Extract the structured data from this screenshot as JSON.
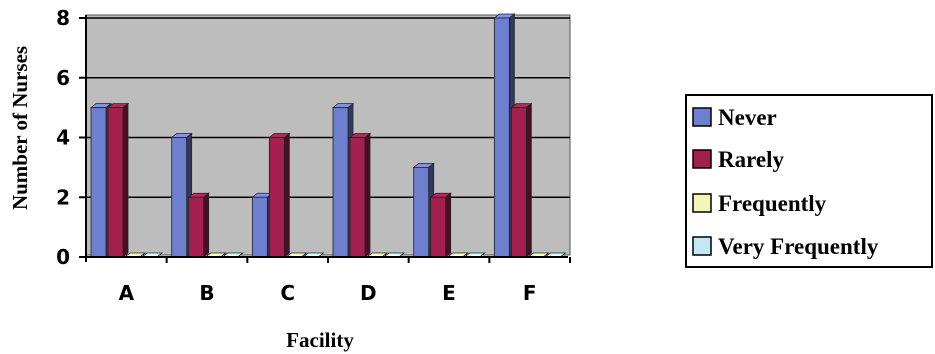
{
  "chart_data": {
    "type": "bar",
    "title": "",
    "xlabel": "Facility",
    "ylabel": "Number of Nurses",
    "categories": [
      "A",
      "B",
      "C",
      "D",
      "E",
      "F"
    ],
    "ylim": [
      0,
      8
    ],
    "yticks": [
      "0",
      "2",
      "4",
      "6",
      "8"
    ],
    "grid": true,
    "legend": "right",
    "style": "3d-clustered-column",
    "series": [
      {
        "name": "Never",
        "values": [
          5,
          4,
          2,
          5,
          3,
          8
        ],
        "color": "#6f7fd0"
      },
      {
        "name": "Rarely",
        "values": [
          5,
          2,
          4,
          4,
          2,
          5
        ],
        "color": "#a3204e"
      },
      {
        "name": "Frequently",
        "values": [
          0,
          0,
          0,
          0,
          0,
          0
        ],
        "color": "#f5f5b8"
      },
      {
        "name": "Very Frequently",
        "values": [
          0,
          0,
          0,
          0,
          0,
          0
        ],
        "color": "#c2e8f2"
      }
    ]
  }
}
